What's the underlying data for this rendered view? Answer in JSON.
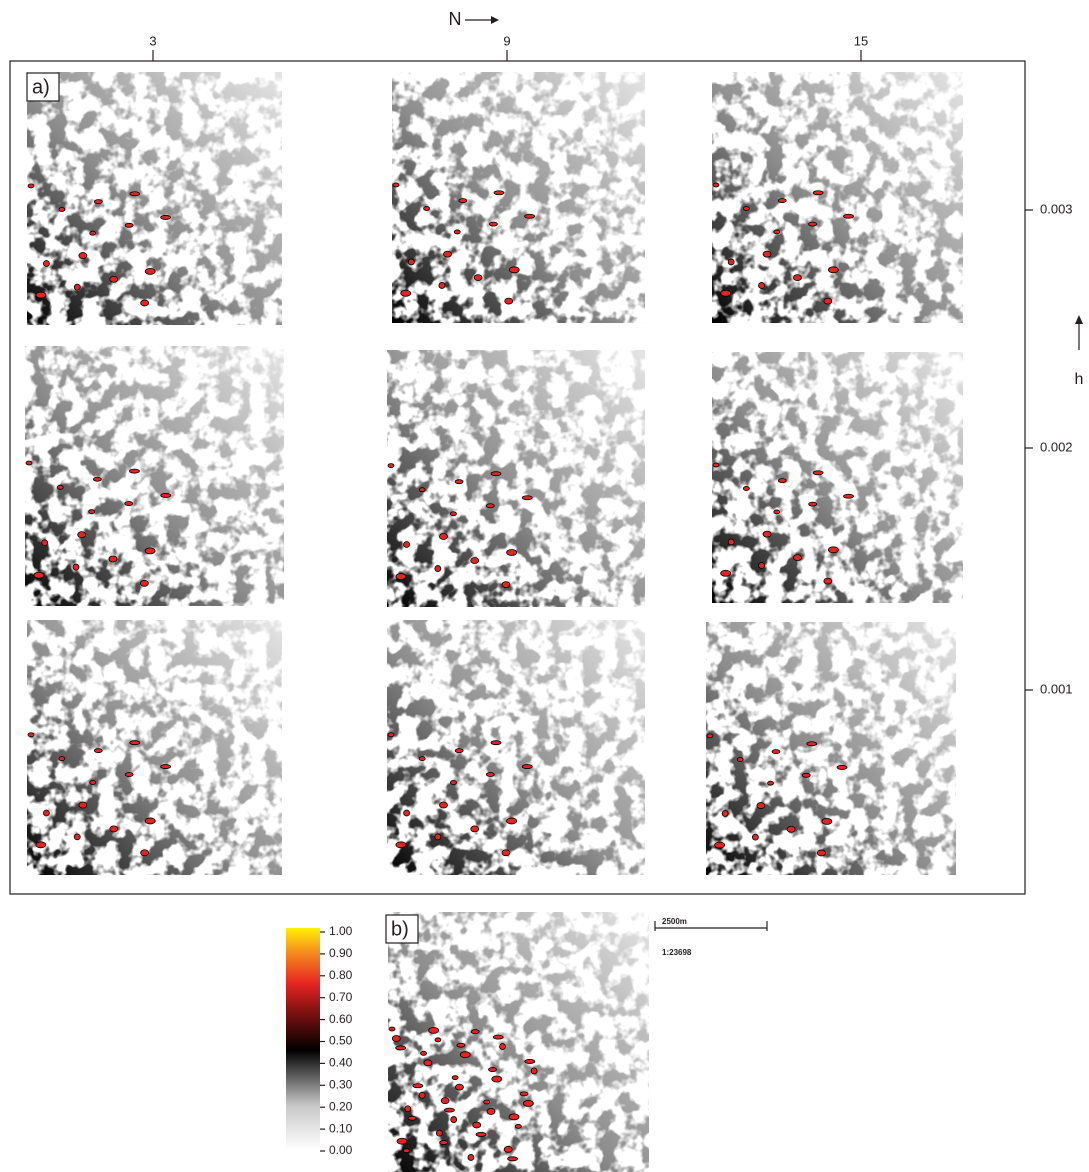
{
  "top_axis": {
    "label": "N",
    "ticks": [
      3,
      9,
      15
    ]
  },
  "right_axis": {
    "label": "h",
    "ticks": [
      0.003,
      0.002,
      0.001
    ]
  },
  "panel_a": {
    "label": "a)"
  },
  "panel_b": {
    "label": "b)"
  },
  "colorbar": {
    "ticks": [
      {
        "value": 1,
        "label": "1.00"
      },
      {
        "value": 0.9,
        "label": "0.90"
      },
      {
        "value": 0.8,
        "label": "0.80"
      },
      {
        "value": 0.7,
        "label": "0.70"
      },
      {
        "value": 0.6,
        "label": "0.60"
      },
      {
        "value": 0.5,
        "label": "0.50"
      },
      {
        "value": 0.4,
        "label": "0.40"
      },
      {
        "value": 0.3,
        "label": "0.30"
      },
      {
        "value": 0.2,
        "label": "0.20"
      },
      {
        "value": 0.1,
        "label": "0.10"
      },
      {
        "value": 0,
        "label": "0.00"
      }
    ]
  },
  "scale_bar": {
    "distance": "2500m",
    "ratio": "1:23698"
  }
}
